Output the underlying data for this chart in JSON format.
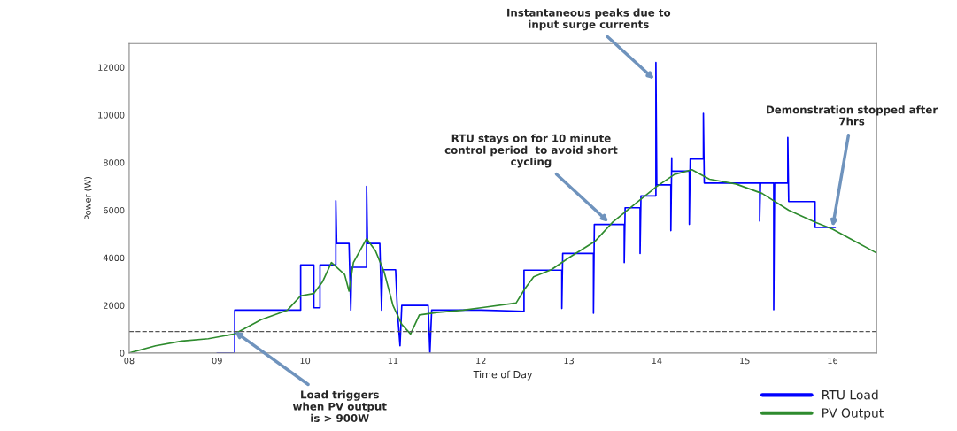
{
  "chart_data": {
    "type": "line",
    "xlabel": "Time of Day",
    "ylabel": "Power (W)",
    "xlim": [
      8,
      16.5
    ],
    "ylim": [
      0,
      13000
    ],
    "xticks": [
      {
        "value": 8,
        "label": "08"
      },
      {
        "value": 9,
        "label": "09"
      },
      10,
      11,
      12,
      13,
      14,
      15,
      16
    ],
    "yticks": [
      0,
      2000,
      4000,
      6000,
      8000,
      10000,
      12000
    ],
    "grid": false,
    "legend": "bottom right",
    "marker": "none",
    "line_style": "solid",
    "ref_lines": [
      {
        "axis": "y",
        "value": 900,
        "color": "#555555",
        "line_style": "dashed"
      }
    ],
    "series": [
      {
        "name": "RTU Load",
        "color": "#0000ff",
        "x": [
          9.0,
          9.2,
          9.2,
          9.95,
          9.95,
          10.1,
          10.1,
          10.17,
          10.17,
          10.35,
          10.35,
          10.36,
          10.5,
          10.52,
          10.53,
          10.7,
          10.7,
          10.71,
          10.85,
          10.87,
          10.88,
          11.03,
          11.05,
          11.08,
          11.1,
          11.4,
          11.42,
          11.44,
          12.0,
          12.49,
          12.49,
          12.92,
          12.92,
          12.93,
          13.28,
          13.28,
          13.29,
          13.63,
          13.63,
          13.64,
          13.81,
          13.81,
          13.82,
          13.99,
          13.99,
          14.0,
          14.16,
          14.16,
          14.17,
          14.17,
          14.37,
          14.37,
          14.38,
          14.53,
          14.53,
          14.54,
          15.17,
          15.17,
          15.18,
          15.33,
          15.33,
          15.34,
          15.49,
          15.49,
          15.5,
          15.8,
          15.8,
          16.03
        ],
        "values": [
          0,
          0,
          1800,
          1800,
          3700,
          3700,
          1900,
          1900,
          3700,
          3700,
          6400,
          4600,
          4600,
          1800,
          3600,
          3600,
          7000,
          4600,
          4600,
          1800,
          3500,
          3500,
          1800,
          300,
          2000,
          2000,
          0,
          1800,
          1800,
          1750,
          3480,
          3480,
          1870,
          4180,
          4180,
          1670,
          5400,
          5400,
          3800,
          6100,
          6100,
          4180,
          6600,
          6600,
          12200,
          7060,
          7060,
          5140,
          8200,
          7640,
          7640,
          5400,
          8150,
          8150,
          10070,
          7140,
          7140,
          5540,
          7140,
          7140,
          1820,
          7140,
          7140,
          9050,
          6360,
          6360,
          5280,
          5280
        ]
      },
      {
        "name": "PV Output",
        "color": "#2e8b2e",
        "x": [
          8.0,
          8.3,
          8.6,
          8.9,
          9.2,
          9.5,
          9.8,
          9.95,
          10.1,
          10.2,
          10.3,
          10.45,
          10.5,
          10.55,
          10.7,
          10.8,
          10.9,
          11.0,
          11.1,
          11.2,
          11.3,
          11.5,
          11.8,
          12.0,
          12.4,
          12.5,
          12.6,
          12.8,
          13.0,
          13.3,
          13.5,
          13.8,
          14.0,
          14.2,
          14.4,
          14.6,
          14.9,
          15.2,
          15.5,
          15.8,
          16.0,
          16.2,
          16.5
        ],
        "values": [
          0,
          300,
          500,
          600,
          800,
          1400,
          1800,
          2400,
          2500,
          3000,
          3800,
          3300,
          2600,
          3800,
          4800,
          4300,
          3400,
          2000,
          1200,
          800,
          1600,
          1700,
          1800,
          1900,
          2100,
          2700,
          3200,
          3500,
          4000,
          4700,
          5500,
          6400,
          7000,
          7500,
          7700,
          7300,
          7100,
          6700,
          6000,
          5500,
          5200,
          4800,
          4200
        ]
      }
    ],
    "annotations": [
      {
        "text": "Instantaneous peaks due to\ninput surge currents",
        "x": 13.97,
        "y": 11500
      },
      {
        "text": "RTU stays on for 10 minute\ncontrol period  to avoid short\ncycling",
        "x": 13.45,
        "y": 5500
      },
      {
        "text": "Demonstration stopped after\n7hrs",
        "x": 16.0,
        "y": 5300
      },
      {
        "text": "Load triggers\nwhen PV output\nis > 900W",
        "x": 9.2,
        "y": 900
      }
    ]
  }
}
